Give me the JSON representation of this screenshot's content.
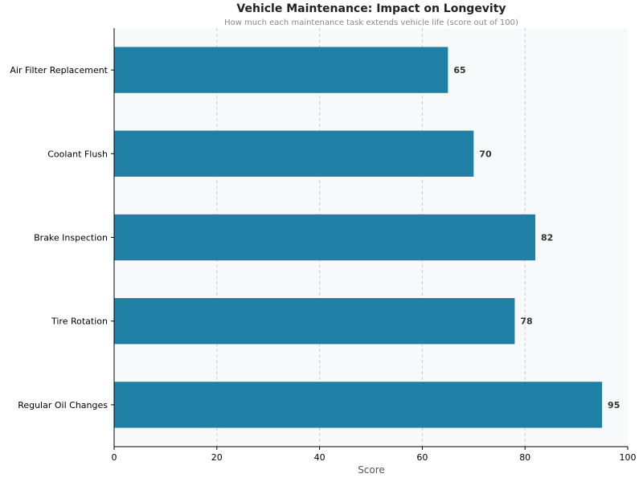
{
  "chart_data": {
    "type": "bar",
    "orientation": "horizontal",
    "title": "Vehicle Maintenance: Impact on Longevity",
    "subtitle": "How much each maintenance task extends vehicle life (score out of 100)",
    "xlabel": "Score",
    "ylabel": "",
    "categories": [
      "Air Filter Replacement",
      "Coolant Flush",
      "Brake Inspection",
      "Tire Rotation",
      "Regular Oil Changes"
    ],
    "values": [
      65,
      70,
      82,
      78,
      95
    ],
    "xlim": [
      0,
      100
    ],
    "xticks": [
      0,
      20,
      40,
      60,
      80,
      100
    ],
    "grid": "vertical dashed",
    "bar_color": "#1f7fa5",
    "background": "#f8f9fb"
  }
}
